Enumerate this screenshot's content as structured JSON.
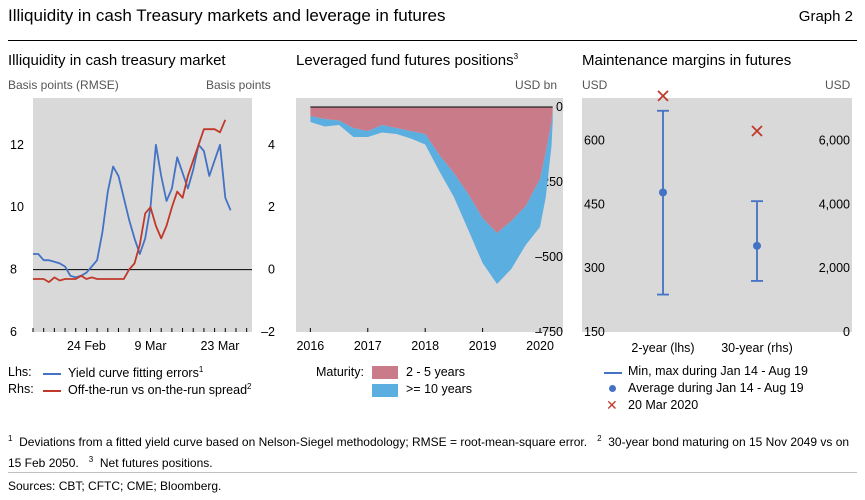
{
  "header": {
    "title": "Illiquidity in cash Treasury markets and leverage in futures",
    "graph_label": "Graph 2"
  },
  "footnotes": {
    "n1_mark": "1",
    "n1": "Deviations from a fitted yield curve based on Nelson-Siegel methodology; RMSE = root-mean-square error.",
    "n2_mark": "2",
    "n2": "30-year bond maturing on 15 Nov 2049 vs on 15 Feb 2050.",
    "n3_mark": "3",
    "n3": "Net futures positions.",
    "sources": "Sources: CBT; CFTC; CME; Bloomberg."
  },
  "colors": {
    "panel_bg": "#d9d9d9",
    "blue": "#4472c4",
    "red": "#c0392b",
    "pink": "#c97b8a",
    "lightblue": "#5aaee0",
    "cross": "#c0392b"
  },
  "chart_data": [
    {
      "type": "line",
      "title": "Illiquidity in cash treasury market",
      "left_unit": "Basis points (RMSE)",
      "right_unit": "Basis points",
      "left_ylim": [
        6,
        13.5
      ],
      "right_ylim": [
        -2,
        5.5
      ],
      "left_ticks": [
        "12",
        "10",
        "8",
        "6"
      ],
      "right_ticks": [
        "4",
        "2",
        "0",
        "–2"
      ],
      "left_tick_values": [
        12,
        10,
        8,
        6
      ],
      "right_tick_values": [
        4,
        2,
        0,
        -2
      ],
      "x_range": [
        0,
        41
      ],
      "x_ticks": [
        {
          "label": "24 Feb",
          "x": 10
        },
        {
          "label": "9 Mar",
          "x": 22
        },
        {
          "label": "23 Mar",
          "x": 35
        }
      ],
      "legend": {
        "lhs_prefix": "Lhs:",
        "rhs_prefix": "Rhs:",
        "blue_label": "Yield curve fitting errors",
        "blue_sup": "1",
        "red_label": "Off-the-run vs on-the-run spread",
        "red_sup": "2"
      },
      "series": [
        {
          "name": "Yield curve fitting errors",
          "axis": "left",
          "x": [
            0,
            1,
            2,
            3,
            4,
            5,
            6,
            7,
            8,
            9,
            10,
            11,
            12,
            13,
            14,
            15,
            16,
            17,
            18,
            19,
            20,
            21,
            22,
            23,
            24,
            25,
            26,
            27,
            28,
            29,
            30,
            31,
            32,
            33,
            34,
            35,
            36,
            37
          ],
          "values": [
            8.5,
            8.5,
            8.3,
            8.3,
            8.25,
            8.2,
            8.1,
            7.8,
            7.75,
            7.8,
            7.9,
            8.1,
            8.3,
            9.2,
            10.5,
            11.3,
            11.0,
            10.3,
            9.6,
            9.0,
            8.5,
            9.0,
            10.0,
            12.0,
            11.0,
            10.2,
            10.6,
            11.6,
            11.1,
            10.6,
            11.2,
            12.0,
            11.8,
            11.0,
            11.5,
            12.0,
            10.3,
            9.9
          ]
        },
        {
          "name": "Off-the-run vs on-the-run spread",
          "axis": "right",
          "x": [
            0,
            1,
            2,
            3,
            4,
            5,
            6,
            7,
            8,
            9,
            10,
            11,
            12,
            13,
            14,
            15,
            16,
            17,
            18,
            19,
            20,
            21,
            22,
            23,
            24,
            25,
            26,
            27,
            28,
            29,
            30,
            31,
            32,
            33,
            34,
            35,
            36
          ],
          "values": [
            -0.3,
            -0.3,
            -0.3,
            -0.4,
            -0.25,
            -0.35,
            -0.3,
            -0.3,
            -0.3,
            -0.2,
            -0.3,
            -0.25,
            -0.3,
            -0.3,
            -0.3,
            -0.3,
            -0.3,
            -0.3,
            0.0,
            0.2,
            0.8,
            1.8,
            2.0,
            1.4,
            1.0,
            1.4,
            2.0,
            2.5,
            2.3,
            3.0,
            3.5,
            4.0,
            4.5,
            4.5,
            4.5,
            4.4,
            4.8
          ]
        }
      ]
    },
    {
      "type": "area",
      "title": "Leveraged fund futures positions",
      "title_sup": "3",
      "unit": "USD bn",
      "ylim": [
        -750,
        30
      ],
      "y_ticks": [
        "0",
        "–250",
        "–500",
        "–750"
      ],
      "y_tick_values": [
        0,
        -250,
        -500,
        -750
      ],
      "x_range": [
        2015.75,
        2020.4
      ],
      "x_ticks": [
        "2016",
        "2017",
        "2018",
        "2019",
        "2020"
      ],
      "x_tick_values": [
        2016,
        2017,
        2018,
        2019,
        2020
      ],
      "legend_prefix": "Maturity:",
      "series": [
        {
          "name": "2 - 5 years",
          "x": [
            2016.0,
            2016.25,
            2016.5,
            2016.75,
            2017.0,
            2017.25,
            2017.5,
            2017.75,
            2018.0,
            2018.25,
            2018.5,
            2018.75,
            2019.0,
            2019.25,
            2019.5,
            2019.75,
            2020.0,
            2020.1,
            2020.2,
            2020.22
          ],
          "values": [
            -30,
            -40,
            -45,
            -70,
            -80,
            -60,
            -70,
            -80,
            -90,
            -160,
            -220,
            -290,
            -370,
            -420,
            -380,
            -330,
            -240,
            -150,
            -50,
            -10
          ]
        },
        {
          "name": ">= 10 years",
          "x": [
            2016.0,
            2016.25,
            2016.5,
            2016.75,
            2017.0,
            2017.25,
            2017.5,
            2017.75,
            2018.0,
            2018.25,
            2018.5,
            2018.75,
            2019.0,
            2019.25,
            2019.5,
            2019.75,
            2020.0,
            2020.1,
            2020.2,
            2020.22
          ],
          "values": [
            -20,
            -25,
            -15,
            -30,
            -20,
            -25,
            -20,
            -25,
            -35,
            -55,
            -80,
            -120,
            -150,
            -170,
            -160,
            -130,
            -160,
            -150,
            -80,
            -40
          ]
        }
      ]
    },
    {
      "type": "scatter",
      "title": "Maintenance margins in futures",
      "left_unit": "USD",
      "right_unit": "USD",
      "left_ylim": [
        150,
        700
      ],
      "right_ylim": [
        0,
        7333
      ],
      "left_ticks": [
        "600",
        "450",
        "300",
        "150"
      ],
      "left_tick_values": [
        600,
        450,
        300,
        150
      ],
      "right_ticks": [
        "6,000",
        "4,000",
        "2,000",
        "0"
      ],
      "right_tick_values": [
        6000,
        4000,
        2000,
        0
      ],
      "categories": [
        "2-year (lhs)",
        "30-year (rhs)"
      ],
      "legend": {
        "range_label": "Min, max during Jan 14 - Aug 19",
        "avg_label": "Average during Jan 14 - Aug 19",
        "cross_label": "20 Mar 2020"
      },
      "series": [
        {
          "name": "2-year (lhs)",
          "axis": "left",
          "min": 238,
          "max": 670,
          "average": 478,
          "mar_20_2020": 705
        },
        {
          "name": "30-year (rhs)",
          "axis": "right",
          "min": 1600,
          "max": 4100,
          "average": 2700,
          "mar_20_2020": 6300
        }
      ]
    }
  ]
}
